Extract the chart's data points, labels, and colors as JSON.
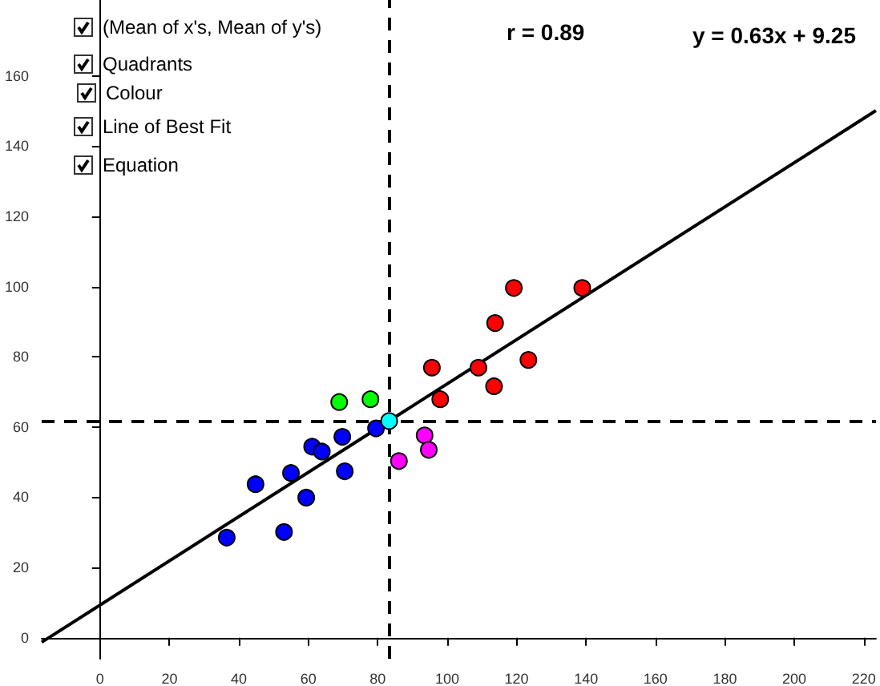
{
  "chart_data": {
    "type": "scatter",
    "xlim": [
      -16.8,
      223.5
    ],
    "ylim": [
      -6,
      181.6
    ],
    "xticks": [
      0,
      20,
      40,
      60,
      80,
      100,
      120,
      140,
      160,
      180,
      200,
      220
    ],
    "yticks": [
      0,
      20,
      40,
      60,
      80,
      100,
      120,
      140,
      160
    ],
    "marker": "circle",
    "series": [
      {
        "x": [
          36.5,
          44.8,
          53,
          55,
          59.4,
          61.1,
          63.9,
          69.8,
          70.5,
          79.5,
          68.9,
          77.9,
          83.3,
          86.1,
          93.5,
          94.7,
          95.6,
          98,
          109,
          113.5,
          113.8,
          119.2,
          123.4,
          138.9
        ],
        "values": [
          28.5,
          43.7,
          30.1,
          46.9,
          39.9,
          54.4,
          53,
          57.2,
          47.4,
          59.6,
          67.1,
          67.9,
          61.7,
          50.3,
          57.6,
          53.5,
          76.9,
          67.9,
          76.9,
          71.6,
          89.6,
          99.6,
          79.1,
          99.6
        ],
        "colors": [
          "#0000ff",
          "#0000ff",
          "#0000ff",
          "#0000ff",
          "#0000ff",
          "#0000ff",
          "#0000ff",
          "#0000ff",
          "#0000ff",
          "#0000ff",
          "#00ff00",
          "#00ff00",
          "#00ffff",
          "#ff00ff",
          "#ff00ff",
          "#ff00ff",
          "#ff0000",
          "#ff0000",
          "#ff0000",
          "#ff0000",
          "#ff0000",
          "#ff0000",
          "#ff0000",
          "#ff0000"
        ]
      },
      {
        "type": "line",
        "color": "#000000",
        "line_style": "solid",
        "marker": "none",
        "x": [
          -16.8,
          223.5
        ],
        "values": [
          -1.3,
          150.1
        ]
      }
    ],
    "ref_lines": [
      {
        "axis": "x",
        "value": 83.3,
        "line_style": "dashed",
        "color": "#000000"
      },
      {
        "axis": "y",
        "value": 61.7,
        "line_style": "dashed",
        "color": "#000000"
      }
    ],
    "annotations": [
      "(Mean of x's, Mean of y's)",
      "Quadrants",
      "Colour",
      "Line of Best Fit",
      "Equation",
      "r = 0.89",
      "y = 0.63x + 9.25"
    ]
  }
}
